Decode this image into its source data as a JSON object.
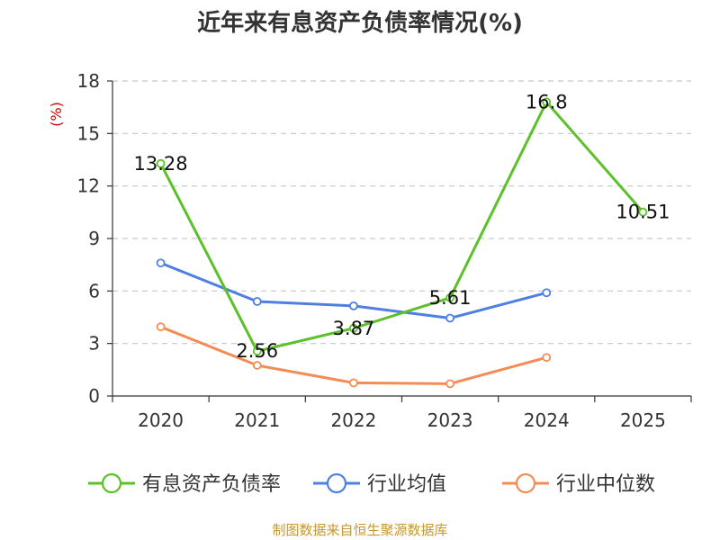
{
  "chart_data": {
    "type": "line",
    "title": "近年来有息资产负债率情况(%)",
    "unit_label": "(%)",
    "categories": [
      "2020",
      "2021",
      "2022",
      "2023",
      "2024",
      "2025"
    ],
    "ylim": [
      0,
      18
    ],
    "yticks": [
      0,
      3,
      6,
      9,
      12,
      15,
      18
    ],
    "grid": true,
    "legend_position": "bottom",
    "series": [
      {
        "name": "有息资产负债率",
        "color": "#5cc02a",
        "values": [
          13.28,
          2.56,
          3.87,
          5.61,
          16.8,
          10.51
        ],
        "labels": [
          "13.28",
          "2.56",
          "3.87",
          "5.61",
          "16.8",
          "10.51"
        ]
      },
      {
        "name": "行业均值",
        "color": "#4f80e0",
        "values": [
          7.6,
          5.4,
          5.15,
          4.45,
          5.9,
          null
        ]
      },
      {
        "name": "行业中位数",
        "color": "#f38d55",
        "values": [
          3.95,
          1.75,
          0.75,
          0.7,
          2.2,
          null
        ]
      }
    ],
    "source": "制图数据来自恒生聚源数据库"
  }
}
